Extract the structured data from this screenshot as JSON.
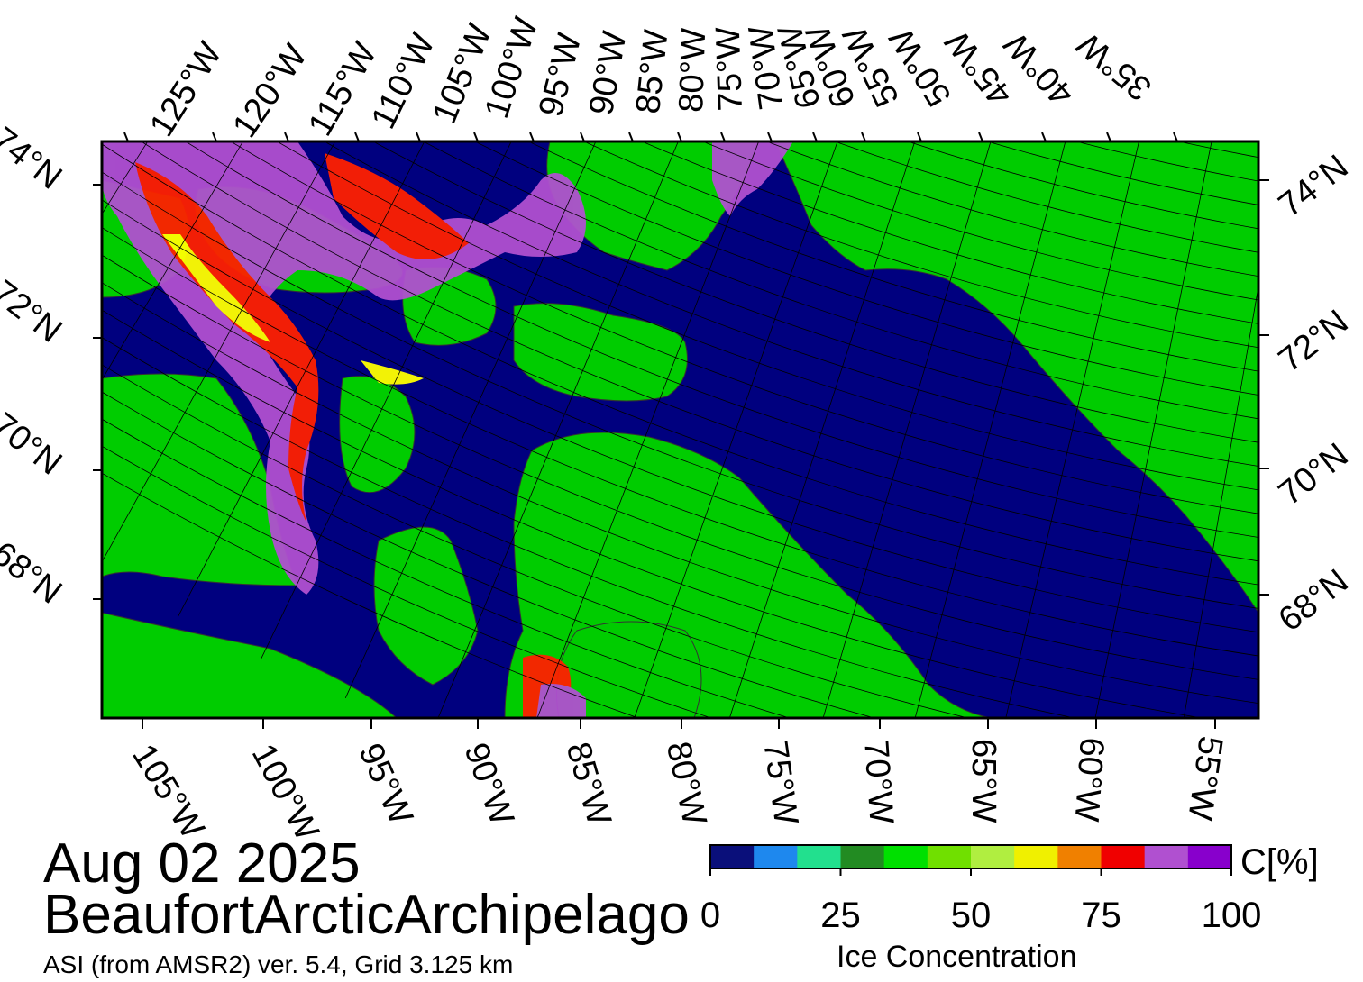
{
  "title": {
    "date": "Aug 02 2025",
    "region": "BeaufortArcticArchipelago",
    "source": "ASI (from AMSR2) ver. 5.4,  Grid 3.125 km"
  },
  "colorbar": {
    "title": "Ice Concentration",
    "unit": "C[%]",
    "ticks": [
      {
        "label": "0",
        "value": 0
      },
      {
        "label": "25",
        "value": 25
      },
      {
        "label": "50",
        "value": 50
      },
      {
        "label": "75",
        "value": 75
      },
      {
        "label": "100",
        "value": 100
      }
    ],
    "bins": [
      "#0a0f7a",
      "#1e88ee",
      "#22e08e",
      "#228b22",
      "#00e000",
      "#70e000",
      "#b0ee40",
      "#f0f000",
      "#f08000",
      "#f00000",
      "#b050d0",
      "#8800cc"
    ]
  },
  "map_colors": {
    "open_water": "#00007f",
    "land": "#00cc00",
    "ice_high": "#b050d0",
    "ice_mid": "#ff0000",
    "ice_low": "#ffff00"
  },
  "axes": {
    "top_longitudes": [
      "125°W",
      "120°W",
      "115°W",
      "110°W",
      "105°W",
      "100°W",
      "95°W",
      "90°W",
      "85°W",
      "80°W",
      "75°W",
      "70°W",
      "65°W",
      "60°W",
      "55°W",
      "50°W",
      "45°W",
      "40°W",
      "35°W"
    ],
    "bottom_longitudes": [
      "105°W",
      "100°W",
      "95°W",
      "90°W",
      "85°W",
      "80°W",
      "75°W",
      "70°W",
      "65°W",
      "60°W",
      "55°W"
    ],
    "left_latitudes": [
      "74°N",
      "72°N",
      "70°N",
      "68°N"
    ],
    "right_latitudes": [
      "74°N",
      "72°N",
      "70°N",
      "68°N"
    ]
  }
}
